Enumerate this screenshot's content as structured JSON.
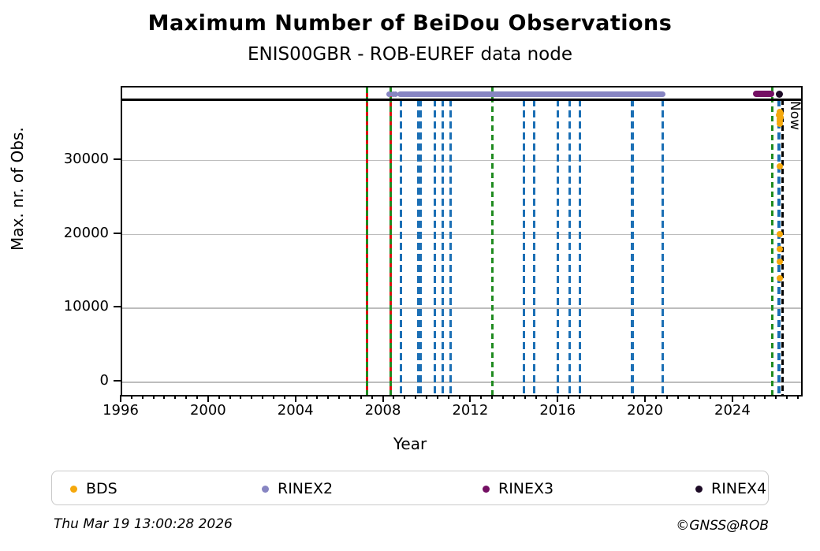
{
  "title": "Maximum Number of BeiDou Observations",
  "subtitle": "ENIS00GBR - ROB-EUREF data node",
  "footer": {
    "timestamp": "Thu Mar 19 13:00:28 2026",
    "credit": "©GNSS@ROB"
  },
  "colors": {
    "bds": "#F5A80C",
    "rinex2": "#8785C2",
    "rinex3": "#740F63",
    "rinex4": "#1D0B26",
    "blue_event": "#1B6FB5",
    "green_event": "#1F8B1F",
    "red_event": "#DD1111",
    "now_line": "#000000",
    "reference_line": "#000000",
    "grid": "#BDBDBD",
    "frame": "#000000"
  },
  "chart_data": {
    "type": "scatter",
    "title": "Maximum Number of BeiDou Observations",
    "subtitle": "ENIS00GBR - ROB-EUREF data node",
    "xlabel": "Year",
    "ylabel": "Max. nr. of Obs.",
    "xlim": [
      1996,
      2027.07
    ],
    "ylim": [
      -1690,
      39900
    ],
    "x_ticks_major": [
      1996,
      2000,
      2004,
      2008,
      2012,
      2016,
      2020,
      2024
    ],
    "x_minor_step": 0.5,
    "y_ticks": [
      0,
      10000,
      20000,
      30000
    ],
    "y_tick_labels": [
      "0",
      "10000",
      "20000",
      "30000"
    ],
    "grid": "horizontal-only",
    "legend_position": "bottom",
    "reference_hline": {
      "value": 38300
    },
    "now_line": {
      "year": 2026.21,
      "label": "Now"
    },
    "event_lines": {
      "red_solid_years": [
        2007.2,
        2008.27
      ],
      "green_dashed_years": [
        2007.2,
        2008.27,
        2012.95,
        2025.76
      ],
      "blue_dashed_years": [
        2008.75,
        2009.54,
        2009.66,
        2010.31,
        2010.67,
        2011.03,
        2014.38,
        2014.86,
        2015.94,
        2016.48,
        2016.96,
        2019.35,
        2020.73,
        2026.06
      ]
    },
    "series": [
      {
        "name": "BDS",
        "marker": "dot",
        "points": [
          [
            2026.08,
            36600
          ],
          [
            2026.12,
            36400
          ],
          [
            2026.07,
            36150
          ],
          [
            2026.13,
            35900
          ],
          [
            2026.1,
            35650
          ],
          [
            2026.1,
            35300
          ],
          [
            2026.09,
            35000
          ],
          [
            2026.1,
            29250
          ],
          [
            2026.1,
            20100
          ],
          [
            2026.1,
            17990
          ],
          [
            2026.1,
            16340
          ],
          [
            2026.1,
            14050
          ]
        ]
      },
      {
        "name": "RINEX2",
        "marker": "dot-run",
        "value": 39000,
        "lead_dot_years": [
          2008.22,
          2008.38,
          2008.52
        ],
        "run_segments": [
          [
            2008.6,
            2020.85
          ]
        ]
      },
      {
        "name": "RINEX3",
        "marker": "dot-run",
        "value": 39050,
        "lead_dot_years": [],
        "run_segments": [
          [
            2024.88,
            2025.85
          ]
        ]
      },
      {
        "name": "RINEX4",
        "marker": "dot",
        "points": [
          [
            2026.07,
            39000
          ]
        ]
      }
    ],
    "legend": [
      {
        "label": "BDS",
        "color_key": "bds"
      },
      {
        "label": "RINEX2",
        "color_key": "rinex2"
      },
      {
        "label": "RINEX3",
        "color_key": "rinex3"
      },
      {
        "label": "RINEX4",
        "color_key": "rinex4"
      }
    ]
  }
}
